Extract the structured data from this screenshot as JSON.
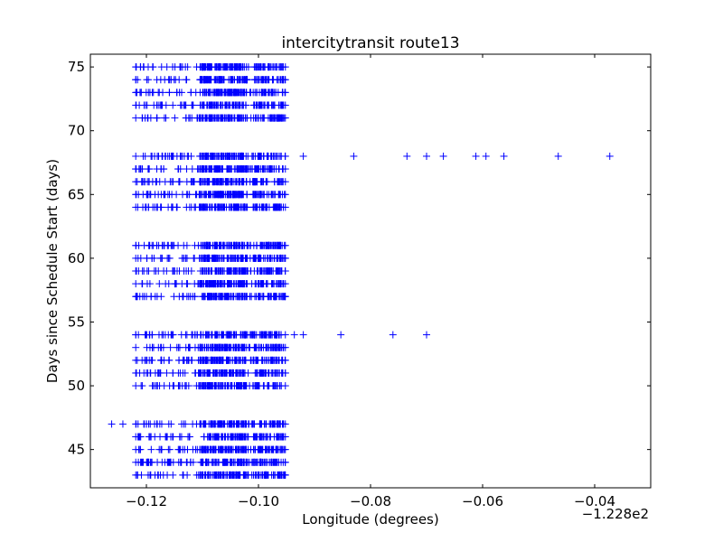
{
  "chart_data": {
    "type": "scatter",
    "title": "intercitytransit route13",
    "xlabel": "Longitude (degrees)",
    "ylabel": "Days since Schedule Start (days)",
    "x_offset_label": "−1.228e2",
    "x_offset": -122.8,
    "xlim": [
      -0.13,
      -0.03
    ],
    "ylim": [
      42,
      76
    ],
    "xticks": [
      -0.12,
      -0.1,
      -0.08,
      -0.06,
      -0.04
    ],
    "xtick_labels": [
      "−0.12",
      "−0.10",
      "−0.08",
      "−0.06",
      "−0.04"
    ],
    "yticks": [
      45,
      50,
      55,
      60,
      65,
      70,
      75
    ],
    "ytick_labels": [
      "45",
      "50",
      "55",
      "60",
      "65",
      "70",
      "75"
    ],
    "marker": "+",
    "marker_color": "#0000ff",
    "grid": false,
    "legend": "none",
    "series": [
      {
        "points": [
          {
            "x_range": [
              -0.1219,
              -0.0952
            ],
            "days": [
              43,
              44,
              45,
              46,
              47
            ]
          },
          {
            "x_range": [
              -0.1219,
              -0.0952
            ],
            "days": [
              50,
              51,
              52,
              53,
              54
            ]
          },
          {
            "x_range": [
              -0.1219,
              -0.0952
            ],
            "days": [
              57,
              58,
              59,
              60,
              61
            ]
          },
          {
            "x_range": [
              -0.1219,
              -0.0952
            ],
            "days": [
              64,
              65,
              66,
              67,
              68
            ]
          },
          {
            "x_range": [
              -0.1219,
              -0.0952
            ],
            "days": [
              71,
              72,
              73,
              74,
              75
            ]
          }
        ],
        "outliers": [
          {
            "x": -0.1262,
            "y": 47
          },
          {
            "x": -0.1242,
            "y": 47
          },
          {
            "x": -0.0936,
            "y": 54
          },
          {
            "x": -0.092,
            "y": 54
          },
          {
            "x": -0.0853,
            "y": 54
          },
          {
            "x": -0.076,
            "y": 54
          },
          {
            "x": -0.07,
            "y": 54
          },
          {
            "x": -0.092,
            "y": 68
          },
          {
            "x": -0.083,
            "y": 68
          },
          {
            "x": -0.0735,
            "y": 68
          },
          {
            "x": -0.07,
            "y": 68
          },
          {
            "x": -0.067,
            "y": 68
          },
          {
            "x": -0.0612,
            "y": 68
          },
          {
            "x": -0.0594,
            "y": 68
          },
          {
            "x": -0.0562,
            "y": 68
          },
          {
            "x": -0.0465,
            "y": 68
          },
          {
            "x": -0.0373,
            "y": 68
          }
        ]
      }
    ]
  }
}
